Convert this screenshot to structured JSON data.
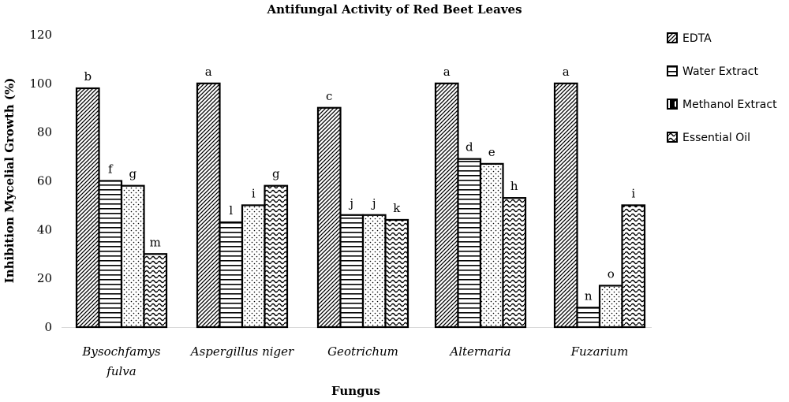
{
  "chart_data": {
    "type": "bar",
    "title": "Antifungal Activity of Red Beet Leaves",
    "xlabel": "Fungus",
    "ylabel": "Inhibition Mycelial Growth (%)",
    "ylim": [
      0,
      120
    ],
    "yticks": [
      0,
      20,
      40,
      60,
      80,
      100,
      120
    ],
    "categories": [
      [
        "Bysochfamys",
        "fulva"
      ],
      [
        "Aspergillus niger"
      ],
      [
        "Geotrichum"
      ],
      [
        "Alternaria"
      ],
      [
        "Fuzarium"
      ]
    ],
    "series": [
      {
        "name": "EDTA",
        "pattern": "diag",
        "values": [
          98,
          100,
          90,
          100,
          100
        ],
        "letters": [
          "b",
          "a",
          "c",
          "a",
          "a"
        ]
      },
      {
        "name": "Water Extract",
        "pattern": "hlines",
        "values": [
          60,
          43,
          46,
          69,
          8
        ],
        "letters": [
          "f",
          "l",
          "j",
          "d",
          "n"
        ]
      },
      {
        "name": "Methanol Extract",
        "pattern": "dots",
        "values": [
          58,
          50,
          46,
          67,
          17
        ],
        "letters": [
          "g",
          "i",
          "j",
          "e",
          "o"
        ]
      },
      {
        "name": "Essential Oil",
        "pattern": "waves",
        "values": [
          30,
          58,
          44,
          53,
          50
        ],
        "letters": [
          "m",
          "g",
          "k",
          "h",
          "i"
        ]
      }
    ],
    "grid": false,
    "legend": "right"
  }
}
